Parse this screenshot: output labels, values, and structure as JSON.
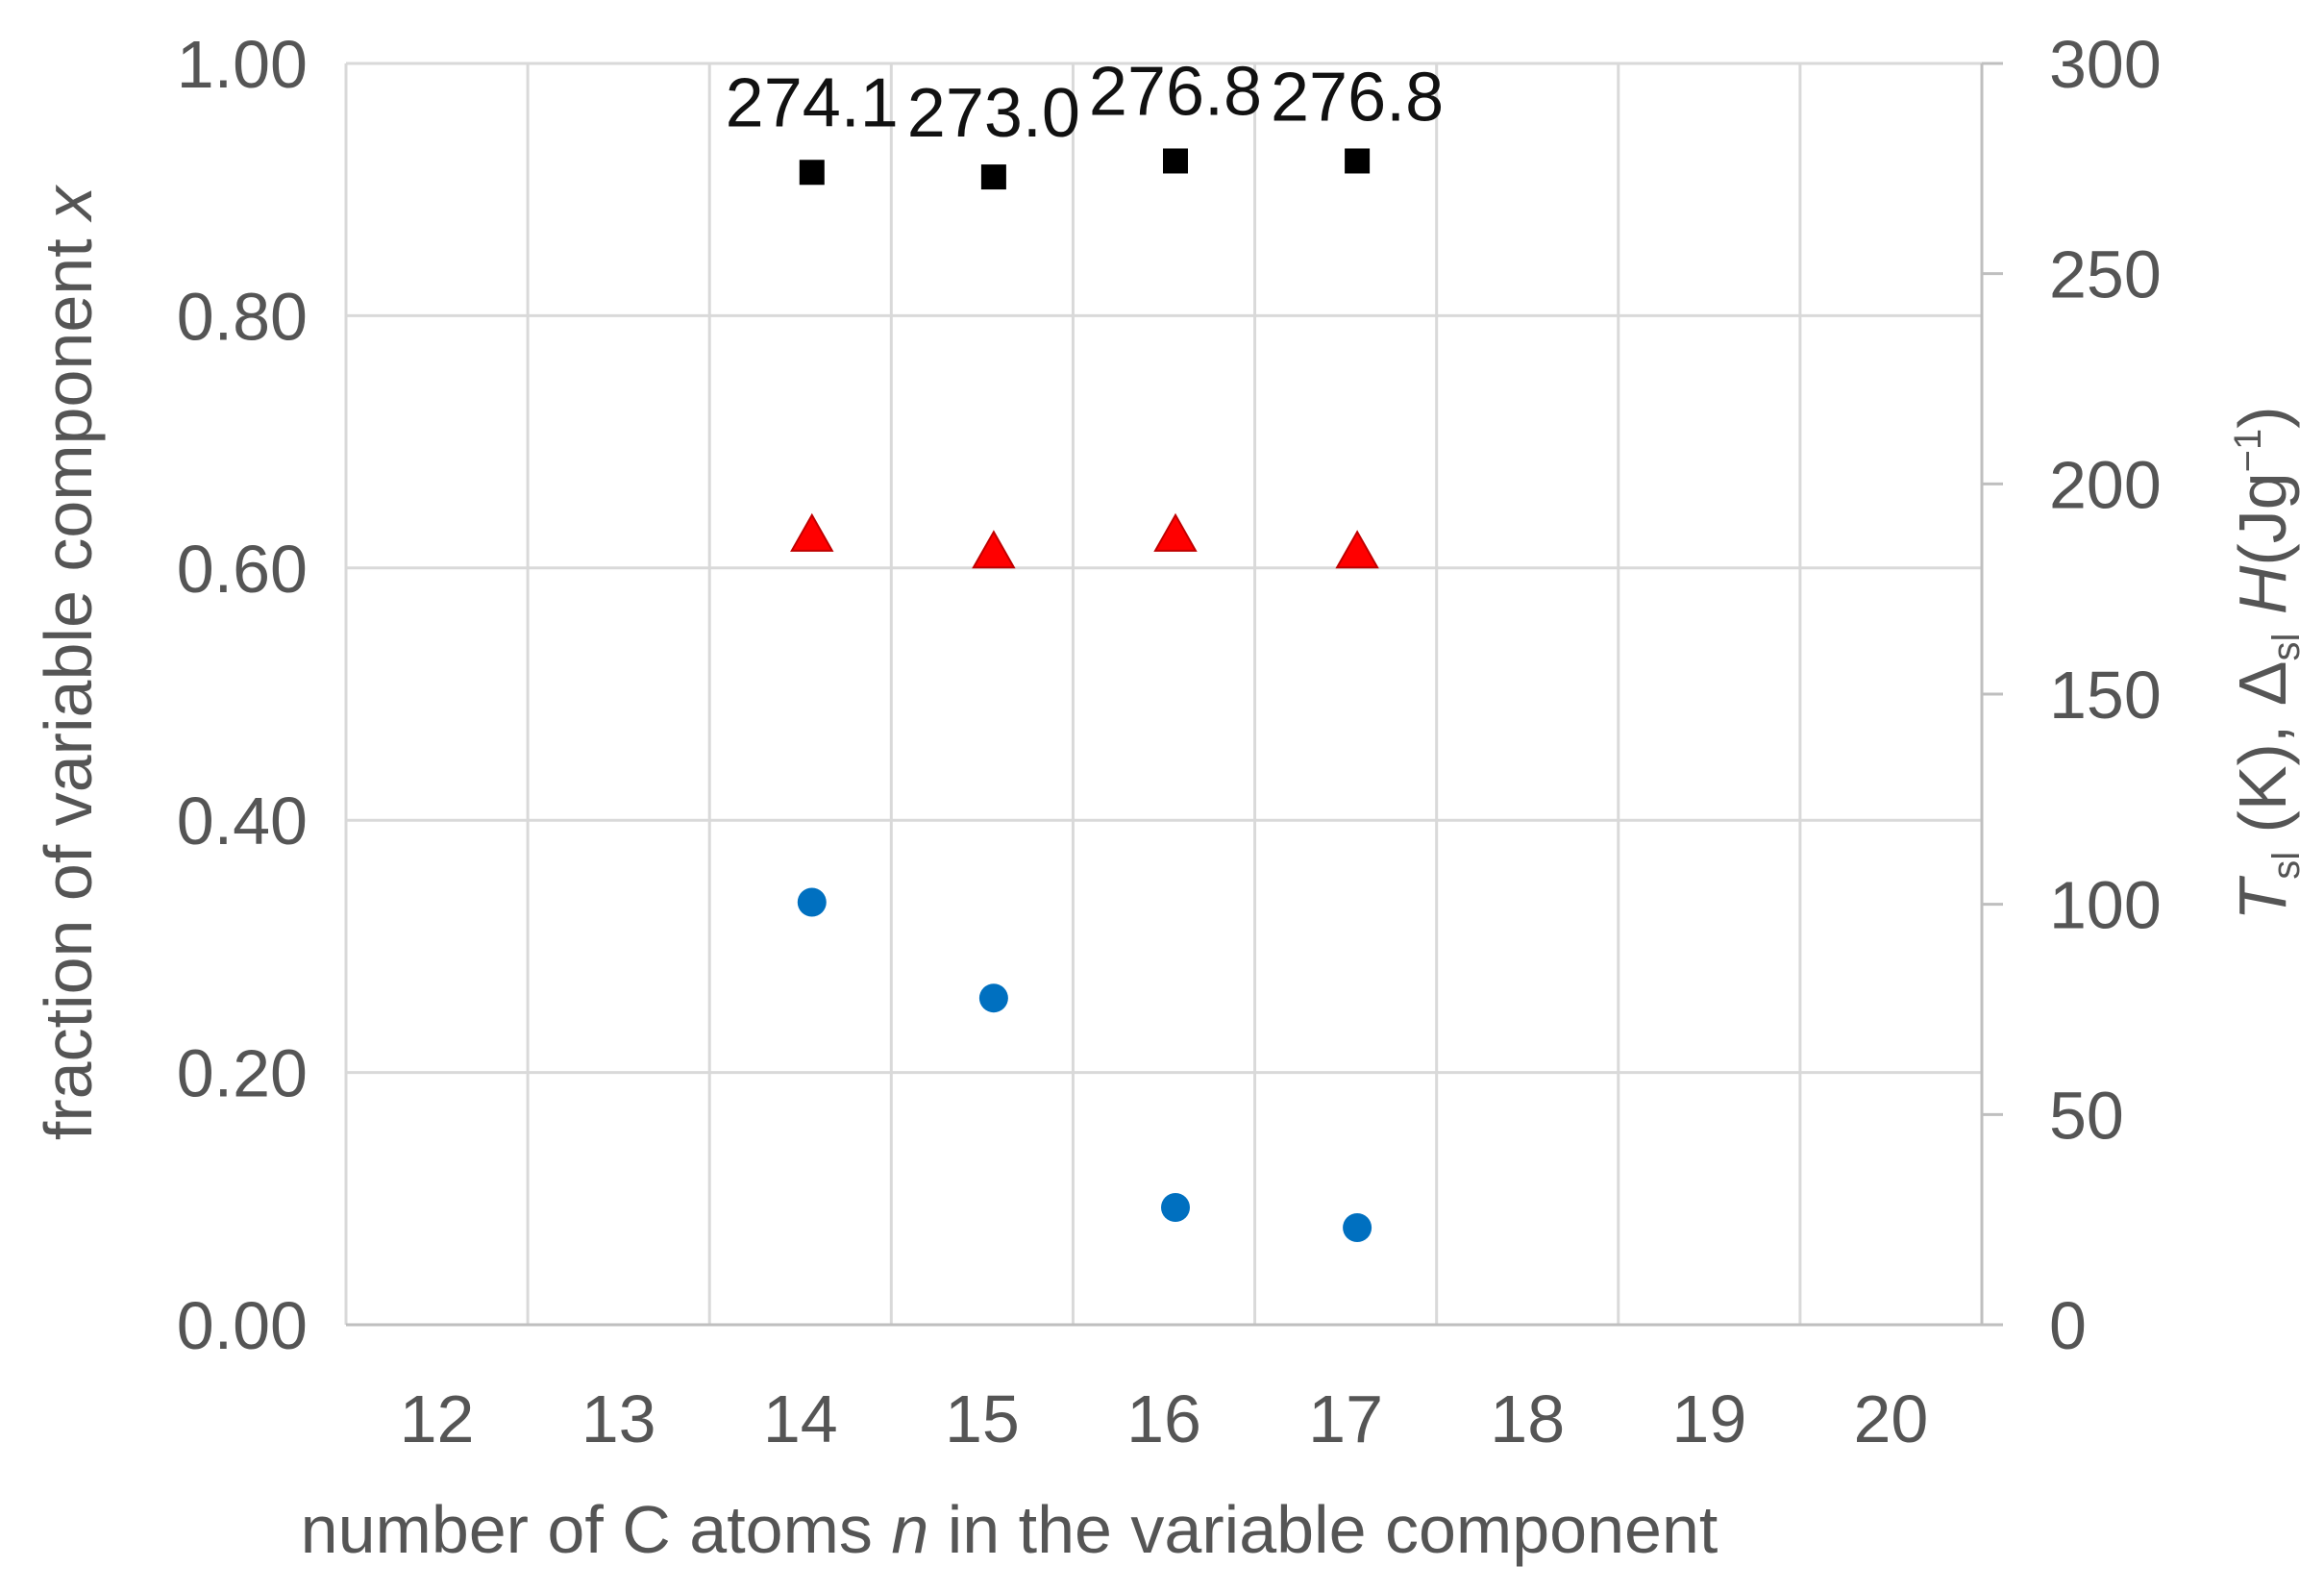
{
  "chart_data": {
    "type": "scatter",
    "title": "",
    "x": [
      14,
      15,
      16,
      17
    ],
    "xlim": [
      11.5,
      20.5
    ],
    "x_ticks": [
      "12",
      "13",
      "14",
      "15",
      "16",
      "17",
      "18",
      "19",
      "20"
    ],
    "xlabel": {
      "before": "number of C atoms ",
      "italic": "n",
      "after": " in the variable component"
    },
    "ylim": [
      0,
      1.0
    ],
    "y_ticks": [
      "0.00",
      "0.20",
      "0.40",
      "0.60",
      "0.80",
      "1.00"
    ],
    "ylabel": {
      "before": "fraction of variable component ",
      "italic": "x"
    },
    "y2lim": [
      0,
      300
    ],
    "y2_ticks": [
      "0",
      "50",
      "100",
      "150",
      "200",
      "250",
      "300"
    ],
    "y2label": {
      "t_italic": "T",
      "t_sub": "sl",
      "mid": " (K), Δ",
      "h_sub": "sl",
      "h_italic": " H",
      "end_before": "(Jg",
      "end_sup": "−1",
      "end_after": ")"
    },
    "grid": true,
    "series": [
      {
        "axis": "right",
        "marker": "square",
        "color": "#000000",
        "values": [
          274.1,
          273.0,
          276.8,
          276.8
        ],
        "labels": [
          "274.1",
          "273.0",
          "276.8",
          "276.8"
        ]
      },
      {
        "axis": "right",
        "marker": "triangle",
        "color": "#ff0000",
        "values": [
          188,
          184,
          188,
          184
        ]
      },
      {
        "axis": "left",
        "marker": "circle",
        "color": "#0070c0",
        "values": [
          0.335,
          0.259,
          0.093,
          0.077
        ]
      }
    ]
  }
}
